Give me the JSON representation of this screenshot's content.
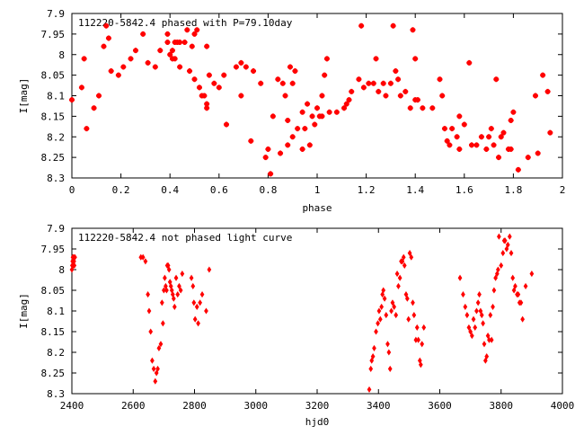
{
  "chart_data": [
    {
      "type": "scatter",
      "title": "112220-5842.4 phased with P=79.10day",
      "xlabel": "phase",
      "ylabel": "I[mag]",
      "xlim": [
        0,
        2
      ],
      "ylim": [
        8.3,
        7.9
      ],
      "y_inverted": true,
      "grid": false,
      "marker_color": "#ff0000",
      "xticks": [
        "0",
        "0.2",
        "0.4",
        "0.6",
        "0.8",
        "1",
        "1.2",
        "1.4",
        "1.6",
        "1.8",
        "2"
      ],
      "xtick_values": [
        0,
        0.2,
        0.4,
        0.6,
        0.8,
        1,
        1.2,
        1.4,
        1.6,
        1.8,
        2
      ],
      "yticks": [
        "7.9",
        "7.95",
        "8",
        "8.05",
        "8.1",
        "8.15",
        "8.2",
        "8.25",
        "8.3"
      ],
      "ytick_values": [
        7.9,
        7.95,
        8,
        8.05,
        8.1,
        8.15,
        8.2,
        8.25,
        8.3
      ],
      "points": [
        [
          0.0,
          8.11
        ],
        [
          0.04,
          8.08
        ],
        [
          0.05,
          8.01
        ],
        [
          0.06,
          8.18
        ],
        [
          0.09,
          8.13
        ],
        [
          0.11,
          8.1
        ],
        [
          0.13,
          7.98
        ],
        [
          0.14,
          7.93
        ],
        [
          0.15,
          7.96
        ],
        [
          0.16,
          8.04
        ],
        [
          0.19,
          8.05
        ],
        [
          0.21,
          8.03
        ],
        [
          0.24,
          8.01
        ],
        [
          0.26,
          7.99
        ],
        [
          0.29,
          7.95
        ],
        [
          0.31,
          8.02
        ],
        [
          0.34,
          8.03
        ],
        [
          0.36,
          7.99
        ],
        [
          0.39,
          7.95
        ],
        [
          0.39,
          7.97
        ],
        [
          0.4,
          8.0
        ],
        [
          0.41,
          8.01
        ],
        [
          0.41,
          7.99
        ],
        [
          0.42,
          7.97
        ],
        [
          0.42,
          8.01
        ],
        [
          0.43,
          7.97
        ],
        [
          0.44,
          8.03
        ],
        [
          0.44,
          7.97
        ],
        [
          0.46,
          7.97
        ],
        [
          0.47,
          7.94
        ],
        [
          0.48,
          8.04
        ],
        [
          0.49,
          7.98
        ],
        [
          0.5,
          7.95
        ],
        [
          0.5,
          8.06
        ],
        [
          0.51,
          7.94
        ],
        [
          0.52,
          8.08
        ],
        [
          0.53,
          8.1
        ],
        [
          0.54,
          8.1
        ],
        [
          0.55,
          7.98
        ],
        [
          0.55,
          8.12
        ],
        [
          0.55,
          8.13
        ],
        [
          0.56,
          8.05
        ],
        [
          0.58,
          8.07
        ],
        [
          0.6,
          8.08
        ],
        [
          0.62,
          8.05
        ],
        [
          0.63,
          8.17
        ],
        [
          0.67,
          8.03
        ],
        [
          0.69,
          8.02
        ],
        [
          0.69,
          8.1
        ],
        [
          0.71,
          8.03
        ],
        [
          0.73,
          8.21
        ],
        [
          0.74,
          8.04
        ],
        [
          0.77,
          8.07
        ],
        [
          0.79,
          8.25
        ],
        [
          0.8,
          8.23
        ],
        [
          0.81,
          8.29
        ],
        [
          0.82,
          8.15
        ],
        [
          0.84,
          8.06
        ],
        [
          0.85,
          8.24
        ],
        [
          0.86,
          8.07
        ],
        [
          0.87,
          8.1
        ],
        [
          0.88,
          8.22
        ],
        [
          0.88,
          8.16
        ],
        [
          0.89,
          8.03
        ],
        [
          0.9,
          8.2
        ],
        [
          0.9,
          8.07
        ],
        [
          0.91,
          8.04
        ],
        [
          0.92,
          8.18
        ],
        [
          0.94,
          8.14
        ],
        [
          0.94,
          8.23
        ],
        [
          0.95,
          8.18
        ],
        [
          0.96,
          8.12
        ],
        [
          0.97,
          8.22
        ],
        [
          0.98,
          8.15
        ],
        [
          0.99,
          8.17
        ],
        [
          1.0,
          8.13
        ],
        [
          1.01,
          8.15
        ],
        [
          1.02,
          8.15
        ],
        [
          1.02,
          8.1
        ],
        [
          1.03,
          8.05
        ],
        [
          1.04,
          8.01
        ],
        [
          1.05,
          8.14
        ],
        [
          1.08,
          8.14
        ],
        [
          1.11,
          8.13
        ],
        [
          1.12,
          8.12
        ],
        [
          1.13,
          8.11
        ],
        [
          1.14,
          8.09
        ],
        [
          1.17,
          8.06
        ],
        [
          1.18,
          7.93
        ],
        [
          1.19,
          8.08
        ],
        [
          1.21,
          8.07
        ],
        [
          1.23,
          8.07
        ],
        [
          1.24,
          8.01
        ],
        [
          1.25,
          8.09
        ],
        [
          1.27,
          8.07
        ],
        [
          1.28,
          8.1
        ],
        [
          1.3,
          8.07
        ],
        [
          1.31,
          7.93
        ],
        [
          1.32,
          8.04
        ],
        [
          1.33,
          8.06
        ],
        [
          1.34,
          8.1
        ],
        [
          1.36,
          8.09
        ],
        [
          1.38,
          8.13
        ],
        [
          1.39,
          7.94
        ],
        [
          1.4,
          8.01
        ],
        [
          1.4,
          8.11
        ],
        [
          1.41,
          8.11
        ],
        [
          1.43,
          8.13
        ],
        [
          1.47,
          8.13
        ],
        [
          1.5,
          8.06
        ],
        [
          1.51,
          8.1
        ],
        [
          1.52,
          8.18
        ],
        [
          1.53,
          8.21
        ],
        [
          1.54,
          8.22
        ],
        [
          1.55,
          8.18
        ],
        [
          1.57,
          8.2
        ],
        [
          1.58,
          8.23
        ],
        [
          1.58,
          8.15
        ],
        [
          1.6,
          8.17
        ],
        [
          1.62,
          8.02
        ],
        [
          1.63,
          8.22
        ],
        [
          1.65,
          8.22
        ],
        [
          1.67,
          8.2
        ],
        [
          1.69,
          8.23
        ],
        [
          1.7,
          8.2
        ],
        [
          1.71,
          8.18
        ],
        [
          1.72,
          8.22
        ],
        [
          1.73,
          8.06
        ],
        [
          1.74,
          8.25
        ],
        [
          1.75,
          8.2
        ],
        [
          1.76,
          8.19
        ],
        [
          1.78,
          8.23
        ],
        [
          1.79,
          8.23
        ],
        [
          1.79,
          8.16
        ],
        [
          1.8,
          8.14
        ],
        [
          1.82,
          8.28
        ],
        [
          1.86,
          8.25
        ],
        [
          1.89,
          8.1
        ],
        [
          1.9,
          8.24
        ],
        [
          1.92,
          8.05
        ],
        [
          1.94,
          8.09
        ],
        [
          1.95,
          8.19
        ]
      ]
    },
    {
      "type": "scatter",
      "title": "112220-5842.4 not phased light curve",
      "xlabel": "hjd0",
      "ylabel": "I[mag]",
      "xlim": [
        2400,
        4000
      ],
      "ylim": [
        8.3,
        7.9
      ],
      "y_inverted": true,
      "grid": false,
      "marker_color": "#ff0000",
      "xticks": [
        "2400",
        "2600",
        "2800",
        "3000",
        "3200",
        "3400",
        "3600",
        "3800",
        "4000"
      ],
      "xtick_values": [
        2400,
        2600,
        2800,
        3000,
        3200,
        3400,
        3600,
        3800,
        4000
      ],
      "yticks": [
        "7.9",
        "7.95",
        "8",
        "8.05",
        "8.1",
        "8.15",
        "8.2",
        "8.25",
        "8.3"
      ],
      "ytick_values": [
        7.9,
        7.95,
        8,
        8.05,
        8.1,
        8.15,
        8.2,
        8.25,
        8.3
      ],
      "points": [
        [
          2400,
          8.0
        ],
        [
          2401,
          7.99
        ],
        [
          2402,
          7.98
        ],
        [
          2403,
          7.97
        ],
        [
          2404,
          7.98
        ],
        [
          2405,
          7.99
        ],
        [
          2406,
          7.97
        ],
        [
          2407,
          7.98
        ],
        [
          2408,
          7.99
        ],
        [
          2410,
          7.97
        ],
        [
          2625,
          7.97
        ],
        [
          2632,
          7.97
        ],
        [
          2640,
          7.98
        ],
        [
          2648,
          8.06
        ],
        [
          2652,
          8.1
        ],
        [
          2657,
          8.15
        ],
        [
          2662,
          8.22
        ],
        [
          2667,
          8.24
        ],
        [
          2672,
          8.27
        ],
        [
          2676,
          8.25
        ],
        [
          2680,
          8.24
        ],
        [
          2684,
          8.19
        ],
        [
          2690,
          8.18
        ],
        [
          2694,
          8.08
        ],
        [
          2697,
          8.13
        ],
        [
          2700,
          8.05
        ],
        [
          2703,
          8.02
        ],
        [
          2706,
          8.04
        ],
        [
          2709,
          8.05
        ],
        [
          2711,
          7.99
        ],
        [
          2714,
          7.99
        ],
        [
          2717,
          8.0
        ],
        [
          2720,
          8.03
        ],
        [
          2723,
          8.04
        ],
        [
          2726,
          8.05
        ],
        [
          2729,
          8.06
        ],
        [
          2732,
          8.07
        ],
        [
          2735,
          8.09
        ],
        [
          2740,
          8.02
        ],
        [
          2745,
          8.06
        ],
        [
          2750,
          8.04
        ],
        [
          2755,
          8.05
        ],
        [
          2760,
          8.01
        ],
        [
          2790,
          8.02
        ],
        [
          2795,
          8.04
        ],
        [
          2798,
          8.08
        ],
        [
          2802,
          8.12
        ],
        [
          2808,
          8.09
        ],
        [
          2812,
          8.13
        ],
        [
          2818,
          8.08
        ],
        [
          2825,
          8.06
        ],
        [
          2838,
          8.1
        ],
        [
          2848,
          8.0
        ],
        [
          3370,
          8.29
        ],
        [
          3375,
          8.24
        ],
        [
          3378,
          8.22
        ],
        [
          3382,
          8.21
        ],
        [
          3386,
          8.19
        ],
        [
          3392,
          8.15
        ],
        [
          3398,
          8.13
        ],
        [
          3402,
          8.1
        ],
        [
          3406,
          8.12
        ],
        [
          3410,
          8.09
        ],
        [
          3413,
          8.06
        ],
        [
          3416,
          8.05
        ],
        [
          3420,
          8.07
        ],
        [
          3425,
          8.11
        ],
        [
          3430,
          8.18
        ],
        [
          3434,
          8.2
        ],
        [
          3438,
          8.24
        ],
        [
          3442,
          8.1
        ],
        [
          3446,
          8.08
        ],
        [
          3451,
          8.09
        ],
        [
          3457,
          8.11
        ],
        [
          3461,
          8.01
        ],
        [
          3465,
          8.04
        ],
        [
          3470,
          8.02
        ],
        [
          3474,
          7.98
        ],
        [
          3478,
          7.98
        ],
        [
          3482,
          7.97
        ],
        [
          3485,
          7.99
        ],
        [
          3490,
          8.06
        ],
        [
          3494,
          8.07
        ],
        [
          3498,
          8.12
        ],
        [
          3502,
          7.96
        ],
        [
          3507,
          7.97
        ],
        [
          3512,
          8.08
        ],
        [
          3516,
          8.11
        ],
        [
          3522,
          8.17
        ],
        [
          3526,
          8.14
        ],
        [
          3530,
          8.17
        ],
        [
          3535,
          8.22
        ],
        [
          3538,
          8.23
        ],
        [
          3542,
          8.18
        ],
        [
          3548,
          8.14
        ],
        [
          3666,
          8.02
        ],
        [
          3676,
          8.06
        ],
        [
          3683,
          8.09
        ],
        [
          3689,
          8.11
        ],
        [
          3695,
          8.14
        ],
        [
          3700,
          8.15
        ],
        [
          3705,
          8.16
        ],
        [
          3710,
          8.12
        ],
        [
          3715,
          8.14
        ],
        [
          3720,
          8.1
        ],
        [
          3725,
          8.08
        ],
        [
          3729,
          8.06
        ],
        [
          3733,
          8.1
        ],
        [
          3737,
          8.11
        ],
        [
          3741,
          8.13
        ],
        [
          3745,
          8.18
        ],
        [
          3749,
          8.22
        ],
        [
          3753,
          8.21
        ],
        [
          3757,
          8.16
        ],
        [
          3761,
          8.17
        ],
        [
          3765,
          8.11
        ],
        [
          3769,
          8.17
        ],
        [
          3773,
          8.09
        ],
        [
          3777,
          8.05
        ],
        [
          3782,
          8.02
        ],
        [
          3787,
          8.01
        ],
        [
          3790,
          8.0
        ],
        [
          3793,
          7.92
        ],
        [
          3800,
          7.99
        ],
        [
          3806,
          7.96
        ],
        [
          3810,
          7.93
        ],
        [
          3813,
          7.93
        ],
        [
          3818,
          7.95
        ],
        [
          3822,
          7.94
        ],
        [
          3828,
          7.92
        ],
        [
          3833,
          7.96
        ],
        [
          3838,
          8.02
        ],
        [
          3842,
          8.05
        ],
        [
          3846,
          8.04
        ],
        [
          3852,
          8.06
        ],
        [
          3856,
          8.06
        ],
        [
          3860,
          8.08
        ],
        [
          3865,
          8.08
        ],
        [
          3870,
          8.12
        ],
        [
          3880,
          8.04
        ],
        [
          3900,
          8.01
        ]
      ]
    }
  ]
}
